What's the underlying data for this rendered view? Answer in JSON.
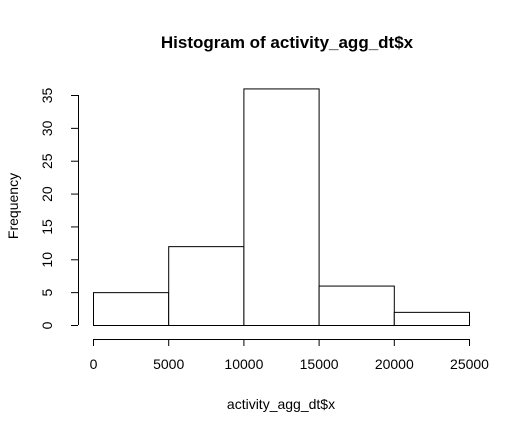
{
  "chart_data": {
    "type": "bar",
    "histogram": true,
    "title": "Histogram of activity_agg_dt$x",
    "xlabel": "activity_agg_dt$x",
    "ylabel": "Frequency",
    "bins": [
      {
        "start": 0,
        "end": 5000,
        "count": 5
      },
      {
        "start": 5000,
        "end": 10000,
        "count": 12
      },
      {
        "start": 10000,
        "end": 15000,
        "count": 36
      },
      {
        "start": 15000,
        "end": 20000,
        "count": 6
      },
      {
        "start": 20000,
        "end": 25000,
        "count": 2
      }
    ],
    "xlim": [
      0,
      25000
    ],
    "ylim": [
      0,
      36
    ],
    "x_ticks": [
      "0",
      "5000",
      "10000",
      "15000",
      "20000",
      "25000"
    ],
    "y_ticks": [
      "0",
      "5",
      "10",
      "15",
      "20",
      "25",
      "30",
      "35"
    ],
    "grid": false,
    "legend": "none",
    "colors": {
      "bar_fill": "#ffffff",
      "bar_stroke": "#000000"
    }
  }
}
